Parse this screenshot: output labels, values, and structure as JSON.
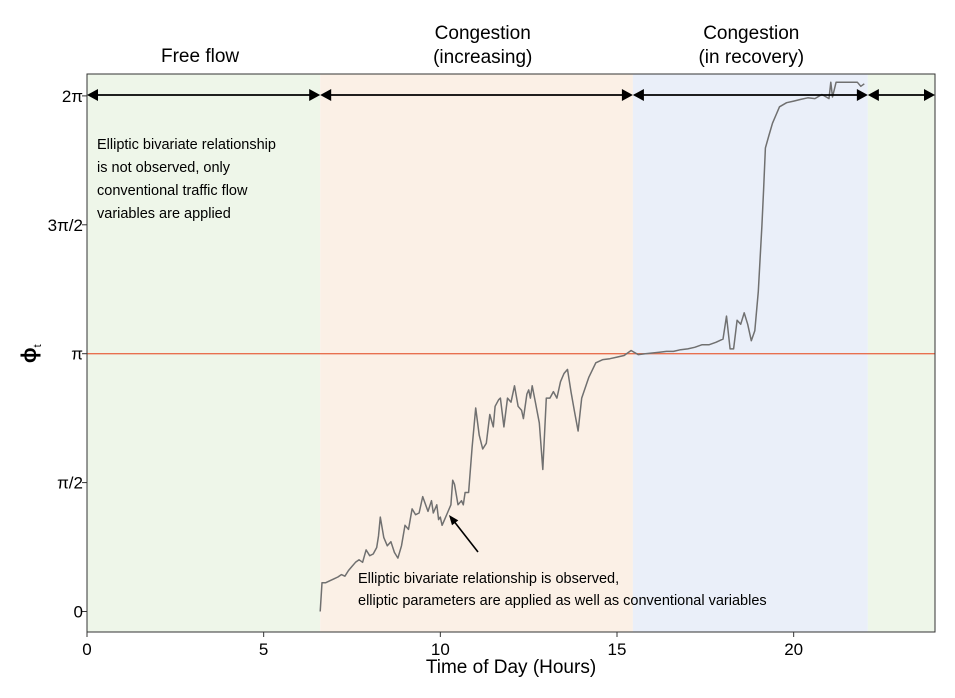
{
  "chart_data": {
    "type": "line",
    "xlabel": "Time of Day (Hours)",
    "ylabel": "ϕ",
    "ylabel_subscript": "t",
    "xlim": [
      0,
      24
    ],
    "ylim": [
      -0.25,
      6.55
    ],
    "x_ticks": [
      0,
      5,
      10,
      15,
      20
    ],
    "y_ticks": [
      {
        "value": 0,
        "label": "0"
      },
      {
        "value": 1.5708,
        "label": "π/2"
      },
      {
        "value": 3.1416,
        "label": "π"
      },
      {
        "value": 4.7124,
        "label": "3π/2"
      },
      {
        "value": 6.2832,
        "label": "2π"
      }
    ],
    "reference_line": {
      "y": 3.1416,
      "color": "#e8704f"
    },
    "grid": false,
    "regions": [
      {
        "name": "free-flow-early",
        "x_start": 0,
        "x_end": 6.6,
        "color": "#eef6e9"
      },
      {
        "name": "congestion-increasing",
        "x_start": 6.6,
        "x_end": 15.45,
        "color": "#fbf0e6"
      },
      {
        "name": "congestion-recovery",
        "x_start": 15.45,
        "x_end": 22.1,
        "color": "#eaeff9"
      },
      {
        "name": "free-flow-late",
        "x_start": 22.1,
        "x_end": 24,
        "color": "#eef6e9"
      }
    ],
    "phases": [
      {
        "lines": [
          "Free flow"
        ],
        "x_center": 3.2,
        "arrow": [
          0,
          6.6
        ]
      },
      {
        "lines": [
          "Congestion",
          "(increasing)"
        ],
        "x_center": 11.2,
        "arrow": [
          6.6,
          15.45
        ]
      },
      {
        "lines": [
          "Congestion",
          "(in recovery)"
        ],
        "x_center": 18.8,
        "arrow": [
          15.45,
          22.1
        ]
      },
      {
        "lines": [],
        "x_center": 23.05,
        "arrow": [
          22.1,
          24
        ]
      }
    ],
    "annotations": [
      {
        "lines": [
          "Elliptic bivariate relationship",
          "is not observed, only",
          "conventional traffic flow",
          "variables are applied"
        ]
      },
      {
        "lines": [
          "Elliptic bivariate relationship is observed,",
          "elliptic parameters are applied as well as conventional variables"
        ]
      }
    ],
    "series": [
      {
        "color": "#707070",
        "x": [
          6.6,
          6.65,
          6.75,
          6.9,
          7.0,
          7.1,
          7.2,
          7.3,
          7.4,
          7.5,
          7.6,
          7.7,
          7.8,
          7.9,
          8.0,
          8.1,
          8.2,
          8.25,
          8.3,
          8.4,
          8.5,
          8.6,
          8.7,
          8.8,
          8.9,
          9.0,
          9.1,
          9.2,
          9.3,
          9.4,
          9.5,
          9.6,
          9.65,
          9.75,
          9.8,
          9.9,
          9.95,
          10.0,
          10.05,
          10.1,
          10.2,
          10.3,
          10.35,
          10.4,
          10.5,
          10.6,
          10.65,
          10.7,
          10.8,
          10.9,
          11.0,
          11.1,
          11.2,
          11.3,
          11.4,
          11.5,
          11.55,
          11.65,
          11.7,
          11.8,
          11.9,
          12.0,
          12.1,
          12.2,
          12.3,
          12.35,
          12.45,
          12.5,
          12.55,
          12.6,
          12.7,
          12.8,
          12.9,
          13.0,
          13.1,
          13.2,
          13.3,
          13.4,
          13.5,
          13.6,
          13.7,
          13.8,
          13.9,
          14.0,
          14.2,
          14.4,
          14.6,
          14.8,
          15.0,
          15.2,
          15.4,
          15.6,
          15.8,
          16.0,
          16.2,
          16.4,
          16.6,
          16.8,
          17.0,
          17.2,
          17.4,
          17.6,
          17.8,
          18.0,
          18.1,
          18.2,
          18.3,
          18.4,
          18.5,
          18.6,
          18.7,
          18.8,
          18.9,
          19.0,
          19.05,
          19.1,
          19.15,
          19.2,
          19.3,
          19.4,
          19.5,
          19.6,
          19.8,
          20.0,
          20.2,
          20.4,
          20.6,
          20.8,
          21.0,
          21.05,
          21.1,
          21.2,
          21.3,
          21.5,
          21.7,
          21.8,
          21.9,
          22.0
        ],
        "y": [
          0.0,
          0.35,
          0.35,
          0.38,
          0.4,
          0.42,
          0.45,
          0.43,
          0.5,
          0.55,
          0.6,
          0.63,
          0.6,
          0.75,
          0.68,
          0.7,
          0.78,
          0.92,
          1.15,
          0.9,
          0.8,
          0.85,
          0.72,
          0.65,
          0.8,
          1.05,
          1.0,
          1.25,
          1.18,
          1.2,
          1.4,
          1.28,
          1.22,
          1.35,
          1.2,
          1.3,
          1.12,
          1.15,
          1.05,
          1.1,
          1.2,
          1.3,
          1.6,
          1.55,
          1.3,
          1.35,
          1.3,
          1.45,
          1.45,
          2.0,
          2.48,
          2.15,
          1.98,
          2.05,
          2.4,
          2.25,
          2.5,
          2.58,
          2.6,
          2.25,
          2.6,
          2.55,
          2.75,
          2.5,
          2.45,
          2.35,
          2.65,
          2.7,
          2.6,
          2.75,
          2.53,
          2.3,
          1.73,
          2.6,
          2.6,
          2.68,
          2.6,
          2.8,
          2.9,
          2.95,
          2.67,
          2.43,
          2.2,
          2.6,
          2.85,
          3.03,
          3.07,
          3.08,
          3.1,
          3.12,
          3.18,
          3.13,
          3.14,
          3.15,
          3.16,
          3.17,
          3.17,
          3.19,
          3.2,
          3.22,
          3.25,
          3.25,
          3.28,
          3.32,
          3.6,
          3.2,
          3.2,
          3.55,
          3.5,
          3.64,
          3.5,
          3.3,
          3.42,
          3.9,
          4.3,
          4.7,
          5.14,
          5.65,
          5.8,
          5.95,
          6.05,
          6.15,
          6.2,
          6.22,
          6.24,
          6.26,
          6.25,
          6.3,
          6.25,
          6.45,
          6.27,
          6.45,
          6.45,
          6.45,
          6.45,
          6.45,
          6.4,
          6.43
        ]
      }
    ]
  }
}
